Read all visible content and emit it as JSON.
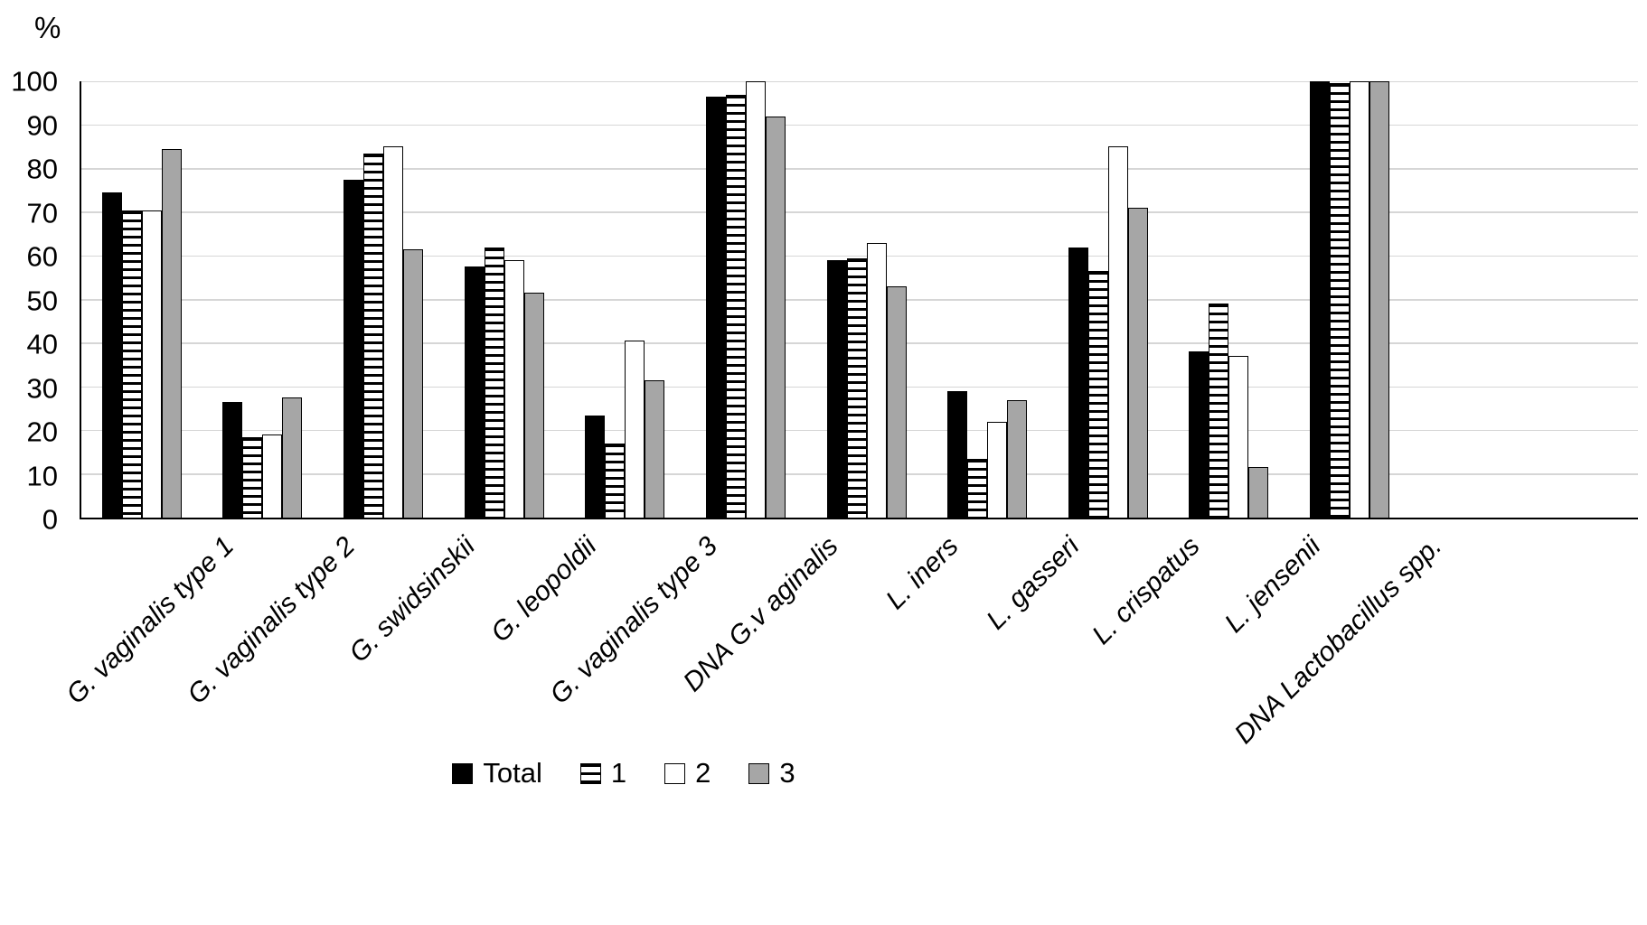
{
  "chart_data": {
    "type": "bar",
    "title": "",
    "xlabel": "",
    "ylabel": "%",
    "ylim": [
      0,
      100
    ],
    "yticks": [
      0,
      10,
      20,
      30,
      40,
      50,
      60,
      70,
      80,
      90,
      100
    ],
    "grid": true,
    "legend_position": "bottom",
    "categories": [
      "G. vaginalis type 1",
      "G. vaginalis type 2",
      "G. swidsinskii",
      "G. leopoldii",
      "G. vaginalis type 3",
      "DNA G.v aginalis",
      "L. iners",
      "L. gasseri",
      "L. crispatus",
      "L. jensenii",
      "DNA Lactobacillus spp."
    ],
    "series": [
      {
        "name": "Total",
        "style": "solid-black",
        "pattern": "solid",
        "color": "#000000",
        "border": "#000000",
        "values": [
          74.5,
          26.5,
          77.5,
          57.5,
          23.5,
          96.5,
          59,
          29,
          62,
          38,
          100
        ]
      },
      {
        "name": "1",
        "style": "striped",
        "pattern": "horizontal-stripes",
        "color": "#ffffff",
        "border": "#000000",
        "values": [
          70.5,
          18.5,
          83.5,
          62,
          17,
          97,
          59.5,
          13.5,
          56.5,
          49,
          99.5
        ]
      },
      {
        "name": "2",
        "style": "white",
        "pattern": "plain",
        "color": "#ffffff",
        "border": "#000000",
        "values": [
          70.5,
          19,
          85,
          59,
          40.5,
          100,
          63,
          22,
          85,
          37,
          100
        ]
      },
      {
        "name": "3",
        "style": "gray",
        "pattern": "plain",
        "color": "#a6a6a6",
        "border": "#000000",
        "values": [
          84.5,
          27.5,
          61.5,
          51.5,
          31.5,
          92,
          53,
          27,
          71,
          11.5,
          100
        ]
      }
    ],
    "colors": {
      "gridline": "#d6d6d6",
      "axis": "#000000",
      "background": "#ffffff"
    }
  }
}
